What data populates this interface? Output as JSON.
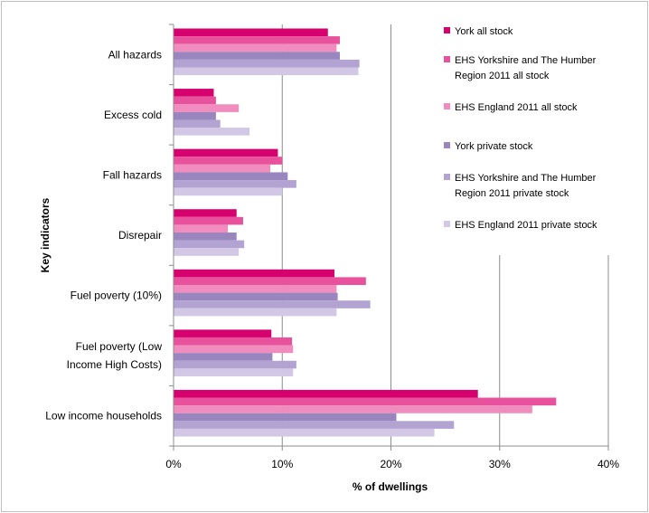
{
  "chart_data": {
    "type": "bar",
    "orientation": "horizontal",
    "title": "",
    "xlabel": "% of dwellings",
    "ylabel": "Key indicators",
    "xlim": [
      0,
      40
    ],
    "x_ticks": [
      "0%",
      "10%",
      "20%",
      "30%",
      "40%"
    ],
    "grid": "vertical major gridlines",
    "legend_position": "top-right",
    "categories": [
      [
        "All hazards"
      ],
      [
        "Excess cold"
      ],
      [
        "Fall hazards"
      ],
      [
        "Disrepair"
      ],
      [
        "Fuel poverty (10%)"
      ],
      [
        "Fuel poverty (Low",
        "Income High Costs)"
      ],
      [
        "Low income households"
      ]
    ],
    "series": [
      {
        "name": [
          "York all stock"
        ],
        "color": "#d6006e",
        "values": [
          14.2,
          3.7,
          9.6,
          5.8,
          14.8,
          9.0,
          28.0
        ]
      },
      {
        "name": [
          "EHS Yorkshire and The Humber",
          "Region 2011 all stock"
        ],
        "color": "#e8529c",
        "values": [
          15.3,
          3.9,
          10.0,
          6.4,
          17.7,
          10.9,
          35.2
        ]
      },
      {
        "name": [
          "EHS England 2011 all stock"
        ],
        "color": "#f08cbe",
        "values": [
          15.0,
          6.0,
          8.9,
          5.0,
          15.0,
          11.0,
          33.0
        ]
      },
      {
        "name": [
          "York private stock"
        ],
        "color": "#9a86bf",
        "values": [
          15.3,
          3.9,
          10.5,
          5.8,
          15.1,
          9.1,
          20.5
        ]
      },
      {
        "name": [
          "EHS Yorkshire and The Humber",
          "Region 2011 private stock"
        ],
        "color": "#b3a3d3",
        "values": [
          17.1,
          4.3,
          11.3,
          6.5,
          18.1,
          11.3,
          25.8
        ]
      },
      {
        "name": [
          "EHS England 2011 private stock"
        ],
        "color": "#d2c8e6",
        "values": [
          17.0,
          7.0,
          10.0,
          6.0,
          15.0,
          11.0,
          24.0
        ]
      }
    ]
  }
}
